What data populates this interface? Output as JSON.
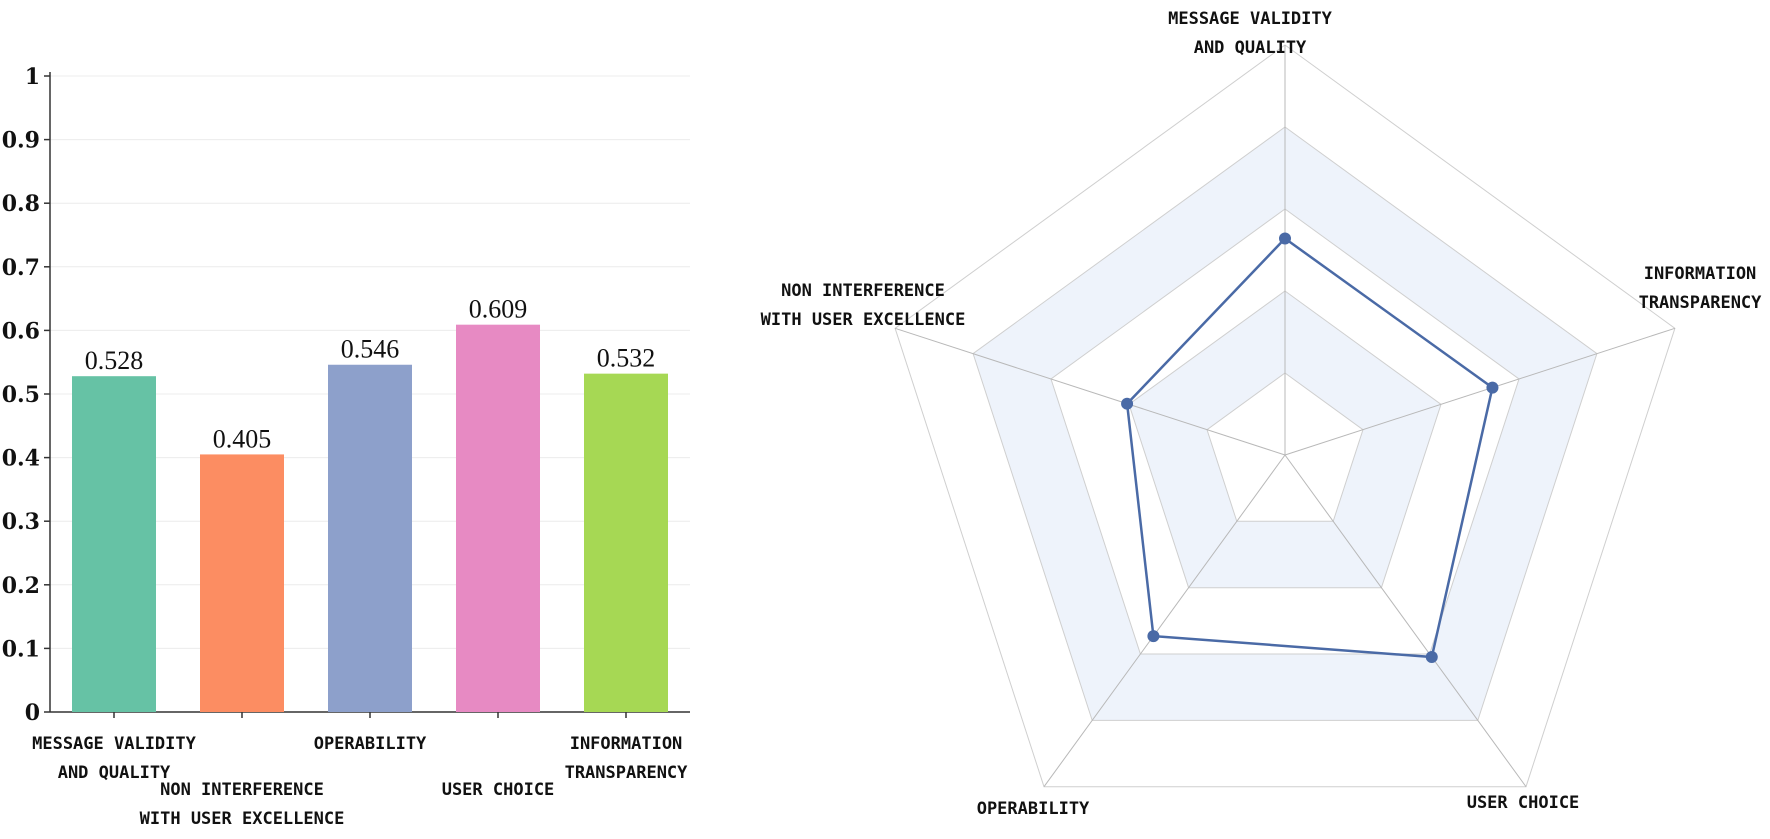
{
  "chart_data": [
    {
      "type": "bar",
      "categories": [
        [
          "MESSAGE VALIDITY",
          "AND QUALITY"
        ],
        [
          "NON INTERFERENCE",
          "WITH USER EXCELLENCE"
        ],
        [
          "OPERABILITY"
        ],
        [
          "USER CHOICE"
        ],
        [
          "INFORMATION",
          "TRANSPARENCY"
        ]
      ],
      "values": [
        0.528,
        0.405,
        0.546,
        0.609,
        0.532
      ],
      "data_labels": [
        "0.528",
        "0.405",
        "0.546",
        "0.609",
        "0.532"
      ],
      "colors": [
        "#66c2a5",
        "#fc8d62",
        "#8da0cb",
        "#e78ac3",
        "#a6d854"
      ],
      "yticks": [
        "0",
        "0.1",
        "0.2",
        "0.3",
        "0.4",
        "0.5",
        "0.6",
        "0.7",
        "0.8",
        "0.9",
        "1"
      ],
      "ylim": [
        0,
        1
      ],
      "grid": true
    },
    {
      "type": "radar",
      "axes": [
        [
          "MESSAGE VALIDITY",
          "AND QUALITY"
        ],
        [
          "INFORMATION",
          "TRANSPARENCY"
        ],
        [
          "USER CHOICE"
        ],
        [
          "OPERABILITY"
        ],
        [
          "NON INTERFERENCE",
          "WITH USER EXCELLENCE"
        ]
      ],
      "values": [
        0.528,
        0.532,
        0.609,
        0.546,
        0.405
      ],
      "range": [
        0,
        1
      ],
      "rings": 5,
      "line_color": "#4a6aa6",
      "band_color": "#eef3fb"
    }
  ]
}
